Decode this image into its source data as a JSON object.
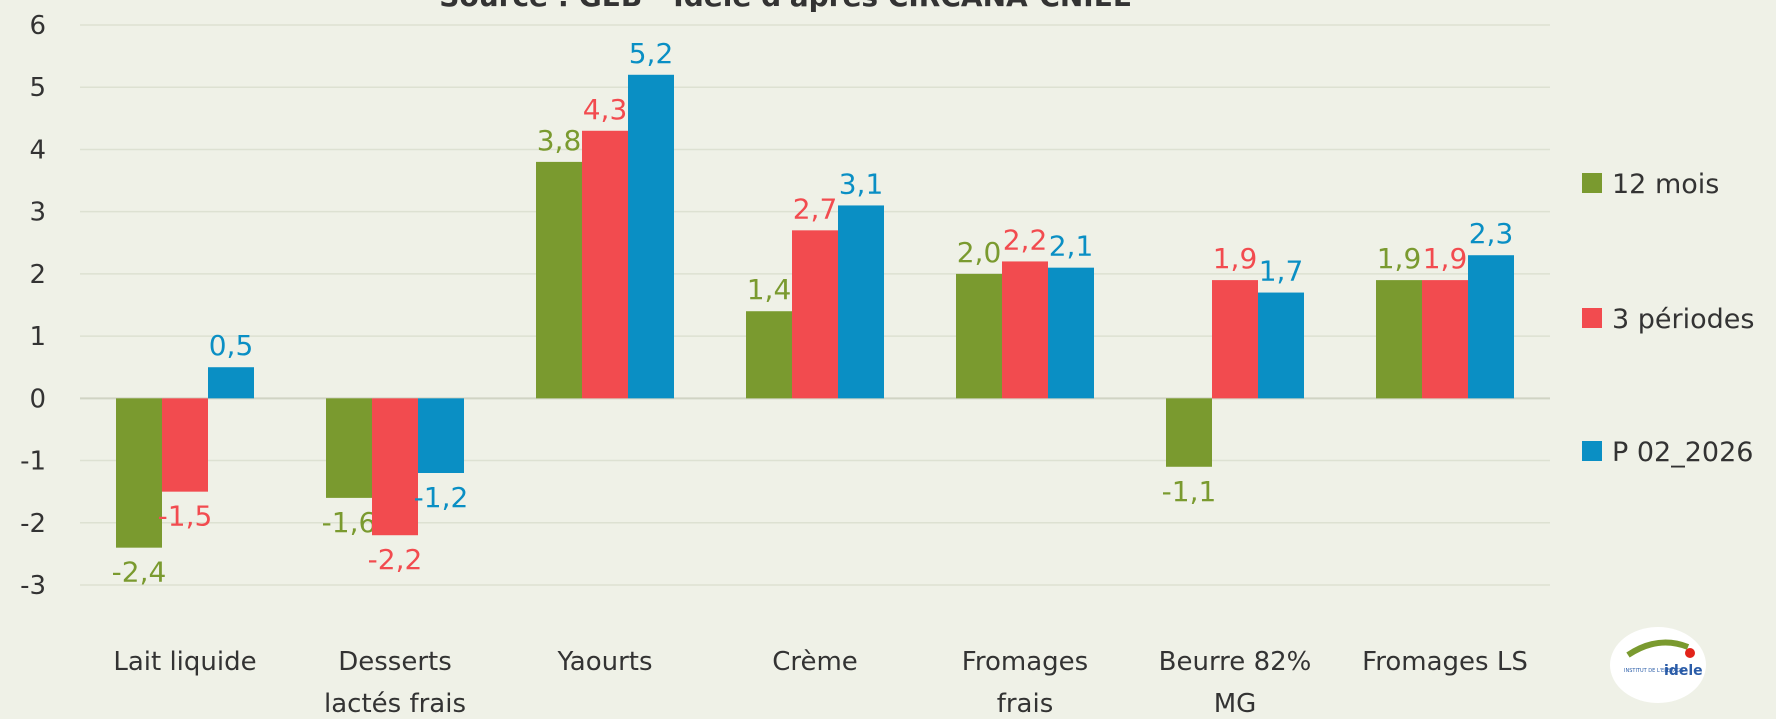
{
  "chart_data": {
    "type": "bar",
    "title": "Source : GEB - Idele d'après CIRCANA-CNIEL",
    "categories": [
      "Lait liquide",
      "Desserts lactés frais",
      "Yaourts",
      "Crème",
      "Fromages frais",
      "Beurre 82% MG",
      "Fromages LS"
    ],
    "series": [
      {
        "name": "12 mois",
        "color": "#7a9a2f",
        "values": [
          -2.4,
          -1.6,
          3.8,
          1.4,
          2.0,
          -1.1,
          1.9
        ],
        "value_labels": [
          "-2,4",
          "-1,6",
          "3,8",
          "1,4",
          "2,0",
          "-1,1",
          "1,9"
        ]
      },
      {
        "name": "3 périodes",
        "color": "#f24b4f",
        "values": [
          -1.5,
          -2.2,
          4.3,
          2.7,
          2.2,
          1.9,
          1.9
        ],
        "value_labels": [
          "-1,5",
          "-2,2",
          "4,3",
          "2,7",
          "2,2",
          "1,9",
          "1,9"
        ]
      },
      {
        "name": "P 02_2026",
        "color": "#0a8fc4",
        "values": [
          0.5,
          -1.2,
          5.2,
          3.1,
          2.1,
          1.7,
          2.3
        ],
        "value_labels": [
          "0,5",
          "-1,2",
          "5,2",
          "3,1",
          "2,1",
          "1,7",
          "2,3"
        ]
      }
    ],
    "ylim": [
      -3,
      6
    ],
    "yticks": [
      -3,
      -2,
      -1,
      0,
      1,
      2,
      3,
      4,
      5,
      6
    ],
    "grid": true,
    "legend": "right",
    "logo": {
      "name": "idele",
      "tagline": "INSTITUT DE L'ELEVAGE"
    }
  }
}
